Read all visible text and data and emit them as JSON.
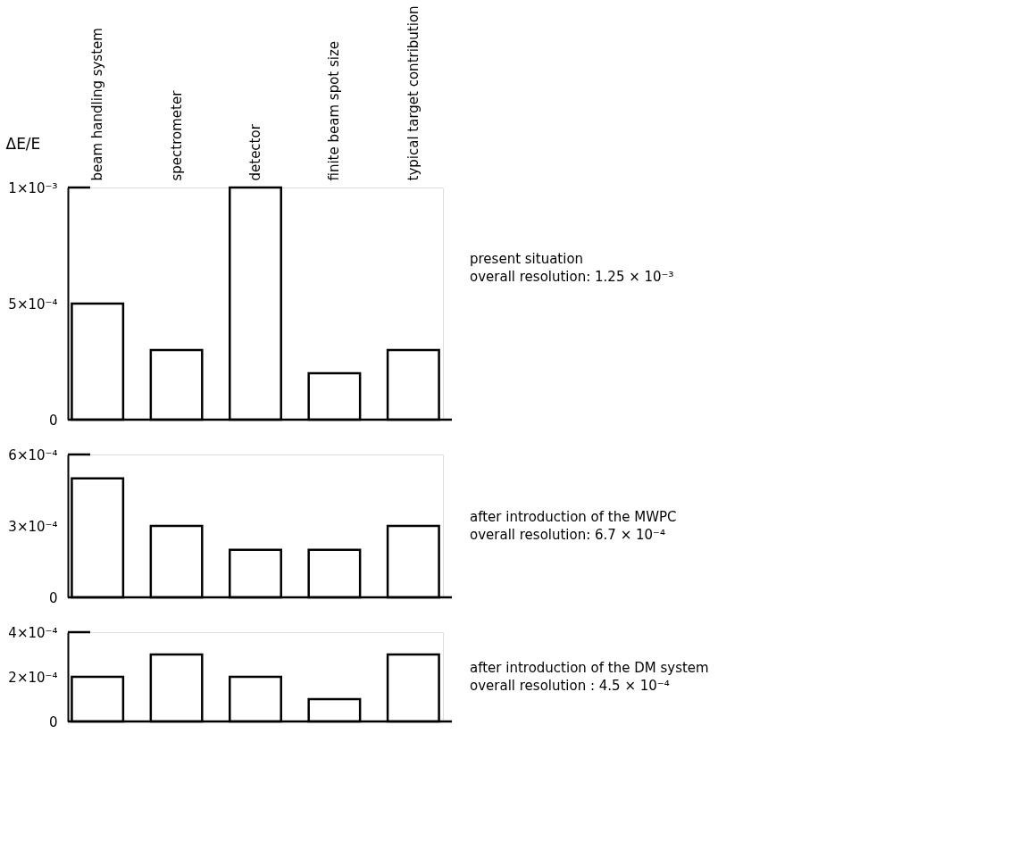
{
  "chart_data": [
    {
      "type": "bar",
      "ylabel": "ΔE/E",
      "categories": [
        "beam handling system",
        "spectrometer",
        "detector",
        "finite beam spot size",
        "typical target contribution"
      ],
      "values": [
        0.0005,
        0.0003,
        0.001,
        0.0002,
        0.0003
      ],
      "color": "#000000",
      "ylim": [
        0,
        0.001
      ],
      "yticks": [
        0,
        {
          "value": 0.0005,
          "label": "5×10⁻⁴"
        },
        {
          "value": 0.001,
          "label": "1×10⁻³"
        }
      ],
      "annotations": [
        "present situation",
        "overall resolution: 1.25 × 10⁻³"
      ]
    },
    {
      "type": "bar",
      "categories": [
        null,
        null,
        null,
        null,
        null
      ],
      "values": [
        0.0005,
        0.0003,
        0.0002,
        0.0002,
        0.0003
      ],
      "color": "#000000",
      "ylim": [
        0,
        0.0006
      ],
      "yticks": [
        0,
        {
          "value": 0.0003,
          "label": "3×10⁻⁴"
        },
        {
          "value": 0.0006,
          "label": "6×10⁻⁴"
        }
      ],
      "tick_labels": "y",
      "annotations": [
        "after introduction of the MWPC",
        "overall resolution: 6.7 × 10⁻⁴"
      ]
    },
    {
      "type": "bar",
      "categories": [
        null,
        null,
        null,
        null,
        null
      ],
      "values": [
        0.0002,
        0.0003,
        0.0002,
        0.0001,
        0.0003
      ],
      "color": "#000000",
      "ylim": [
        0,
        0.0004
      ],
      "yticks": [
        0,
        {
          "value": 0.0002,
          "label": "2×10⁻⁴"
        },
        {
          "value": 0.0004,
          "label": "4×10⁻⁴"
        }
      ],
      "tick_labels": "y",
      "annotations": [
        "after introduction of the DM system",
        "overall resolution : 4.5 × 10⁻⁴"
      ]
    }
  ]
}
